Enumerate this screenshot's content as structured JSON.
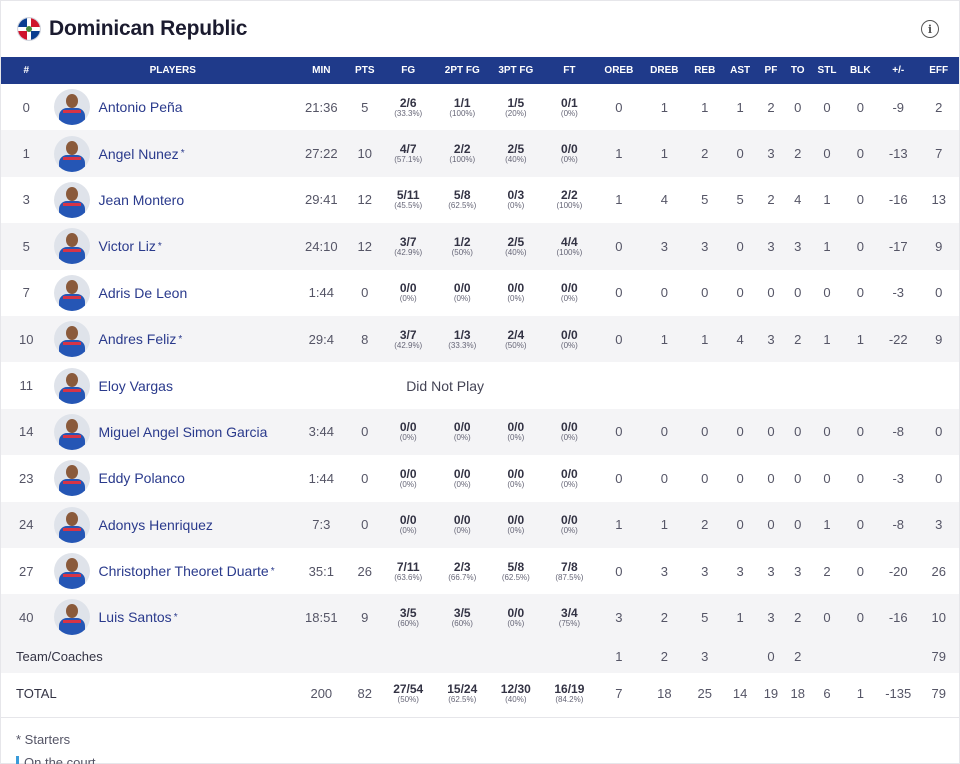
{
  "team": {
    "name": "Dominican Republic",
    "info_icon": "info-icon",
    "flag_icon": "dominican-flag-icon"
  },
  "columns": [
    "#",
    "PLAYERS",
    "MIN",
    "PTS",
    "FG",
    "2PT FG",
    "3PT FG",
    "FT",
    "OREB",
    "DREB",
    "REB",
    "AST",
    "PF",
    "TO",
    "STL",
    "BLK",
    "+/-",
    "EFF"
  ],
  "players": [
    {
      "num": "0",
      "name": "Antonio Peña",
      "star": "",
      "min": "21:36",
      "pts": "5",
      "fg": "2/6",
      "fgp": "(33.3%)",
      "p2": "1/1",
      "p2p": "(100%)",
      "p3": "1/5",
      "p3p": "(20%)",
      "ft": "0/1",
      "ftp": "(0%)",
      "oreb": "0",
      "dreb": "1",
      "reb": "1",
      "ast": "1",
      "pf": "2",
      "to": "0",
      "stl": "0",
      "blk": "0",
      "pm": "-9",
      "eff": "2"
    },
    {
      "num": "1",
      "name": "Angel Nunez",
      "star": "*",
      "min": "27:22",
      "pts": "10",
      "fg": "4/7",
      "fgp": "(57.1%)",
      "p2": "2/2",
      "p2p": "(100%)",
      "p3": "2/5",
      "p3p": "(40%)",
      "ft": "0/0",
      "ftp": "(0%)",
      "oreb": "1",
      "dreb": "1",
      "reb": "2",
      "ast": "0",
      "pf": "3",
      "to": "2",
      "stl": "0",
      "blk": "0",
      "pm": "-13",
      "eff": "7"
    },
    {
      "num": "3",
      "name": "Jean Montero",
      "star": "",
      "min": "29:41",
      "pts": "12",
      "fg": "5/11",
      "fgp": "(45.5%)",
      "p2": "5/8",
      "p2p": "(62.5%)",
      "p3": "0/3",
      "p3p": "(0%)",
      "ft": "2/2",
      "ftp": "(100%)",
      "oreb": "1",
      "dreb": "4",
      "reb": "5",
      "ast": "5",
      "pf": "2",
      "to": "4",
      "stl": "1",
      "blk": "0",
      "pm": "-16",
      "eff": "13"
    },
    {
      "num": "5",
      "name": "Victor Liz",
      "star": "*",
      "min": "24:10",
      "pts": "12",
      "fg": "3/7",
      "fgp": "(42.9%)",
      "p2": "1/2",
      "p2p": "(50%)",
      "p3": "2/5",
      "p3p": "(40%)",
      "ft": "4/4",
      "ftp": "(100%)",
      "oreb": "0",
      "dreb": "3",
      "reb": "3",
      "ast": "0",
      "pf": "3",
      "to": "3",
      "stl": "1",
      "blk": "0",
      "pm": "-17",
      "eff": "9"
    },
    {
      "num": "7",
      "name": "Adris De Leon",
      "star": "",
      "min": "1:44",
      "pts": "0",
      "fg": "0/0",
      "fgp": "(0%)",
      "p2": "0/0",
      "p2p": "(0%)",
      "p3": "0/0",
      "p3p": "(0%)",
      "ft": "0/0",
      "ftp": "(0%)",
      "oreb": "0",
      "dreb": "0",
      "reb": "0",
      "ast": "0",
      "pf": "0",
      "to": "0",
      "stl": "0",
      "blk": "0",
      "pm": "-3",
      "eff": "0"
    },
    {
      "num": "10",
      "name": "Andres Feliz",
      "star": "*",
      "min": "29:4",
      "pts": "8",
      "fg": "3/7",
      "fgp": "(42.9%)",
      "p2": "1/3",
      "p2p": "(33.3%)",
      "p3": "2/4",
      "p3p": "(50%)",
      "ft": "0/0",
      "ftp": "(0%)",
      "oreb": "0",
      "dreb": "1",
      "reb": "1",
      "ast": "4",
      "pf": "3",
      "to": "2",
      "stl": "1",
      "blk": "1",
      "pm": "-22",
      "eff": "9"
    },
    {
      "num": "11",
      "name": "Eloy Vargas",
      "star": "",
      "dnp": "Did Not Play"
    },
    {
      "num": "14",
      "name": "Miguel Angel Simon Garcia",
      "star": "",
      "min": "3:44",
      "pts": "0",
      "fg": "0/0",
      "fgp": "(0%)",
      "p2": "0/0",
      "p2p": "(0%)",
      "p3": "0/0",
      "p3p": "(0%)",
      "ft": "0/0",
      "ftp": "(0%)",
      "oreb": "0",
      "dreb": "0",
      "reb": "0",
      "ast": "0",
      "pf": "0",
      "to": "0",
      "stl": "0",
      "blk": "0",
      "pm": "-8",
      "eff": "0"
    },
    {
      "num": "23",
      "name": "Eddy Polanco",
      "star": "",
      "min": "1:44",
      "pts": "0",
      "fg": "0/0",
      "fgp": "(0%)",
      "p2": "0/0",
      "p2p": "(0%)",
      "p3": "0/0",
      "p3p": "(0%)",
      "ft": "0/0",
      "ftp": "(0%)",
      "oreb": "0",
      "dreb": "0",
      "reb": "0",
      "ast": "0",
      "pf": "0",
      "to": "0",
      "stl": "0",
      "blk": "0",
      "pm": "-3",
      "eff": "0"
    },
    {
      "num": "24",
      "name": "Adonys Henriquez",
      "star": "",
      "min": "7:3",
      "pts": "0",
      "fg": "0/0",
      "fgp": "(0%)",
      "p2": "0/0",
      "p2p": "(0%)",
      "p3": "0/0",
      "p3p": "(0%)",
      "ft": "0/0",
      "ftp": "(0%)",
      "oreb": "1",
      "dreb": "1",
      "reb": "2",
      "ast": "0",
      "pf": "0",
      "to": "0",
      "stl": "1",
      "blk": "0",
      "pm": "-8",
      "eff": "3"
    },
    {
      "num": "27",
      "name": "Christopher Theoret Duarte",
      "star": "*",
      "min": "35:1",
      "pts": "26",
      "fg": "7/11",
      "fgp": "(63.6%)",
      "p2": "2/3",
      "p2p": "(66.7%)",
      "p3": "5/8",
      "p3p": "(62.5%)",
      "ft": "7/8",
      "ftp": "(87.5%)",
      "oreb": "0",
      "dreb": "3",
      "reb": "3",
      "ast": "3",
      "pf": "3",
      "to": "3",
      "stl": "2",
      "blk": "0",
      "pm": "-20",
      "eff": "26"
    },
    {
      "num": "40",
      "name": "Luis Santos",
      "star": "*",
      "min": "18:51",
      "pts": "9",
      "fg": "3/5",
      "fgp": "(60%)",
      "p2": "3/5",
      "p2p": "(60%)",
      "p3": "0/0",
      "p3p": "(0%)",
      "ft": "3/4",
      "ftp": "(75%)",
      "oreb": "3",
      "dreb": "2",
      "reb": "5",
      "ast": "1",
      "pf": "3",
      "to": "2",
      "stl": "0",
      "blk": "0",
      "pm": "-16",
      "eff": "10"
    }
  ],
  "team_row": {
    "label": "Team/Coaches",
    "oreb": "1",
    "dreb": "2",
    "reb": "3",
    "ast": "",
    "pf": "0",
    "to": "2",
    "stl": "",
    "blk": "",
    "pm": "",
    "eff": "79"
  },
  "total_row": {
    "label": "TOTAL",
    "min": "200",
    "pts": "82",
    "fg": "27/54",
    "fgp": "(50%)",
    "p2": "15/24",
    "p2p": "(62.5%)",
    "p3": "12/30",
    "p3p": "(40%)",
    "ft": "16/19",
    "ftp": "(84.2%)",
    "oreb": "7",
    "dreb": "18",
    "reb": "25",
    "ast": "14",
    "pf": "19",
    "to": "18",
    "stl": "6",
    "blk": "1",
    "pm": "-135",
    "eff": "79"
  },
  "legend": {
    "starters": "* Starters",
    "on_court": "On the court"
  },
  "colors": {
    "header_bg": "#1f3a8a",
    "link": "#2a3a8c",
    "on_court": "#3a9bd9"
  }
}
